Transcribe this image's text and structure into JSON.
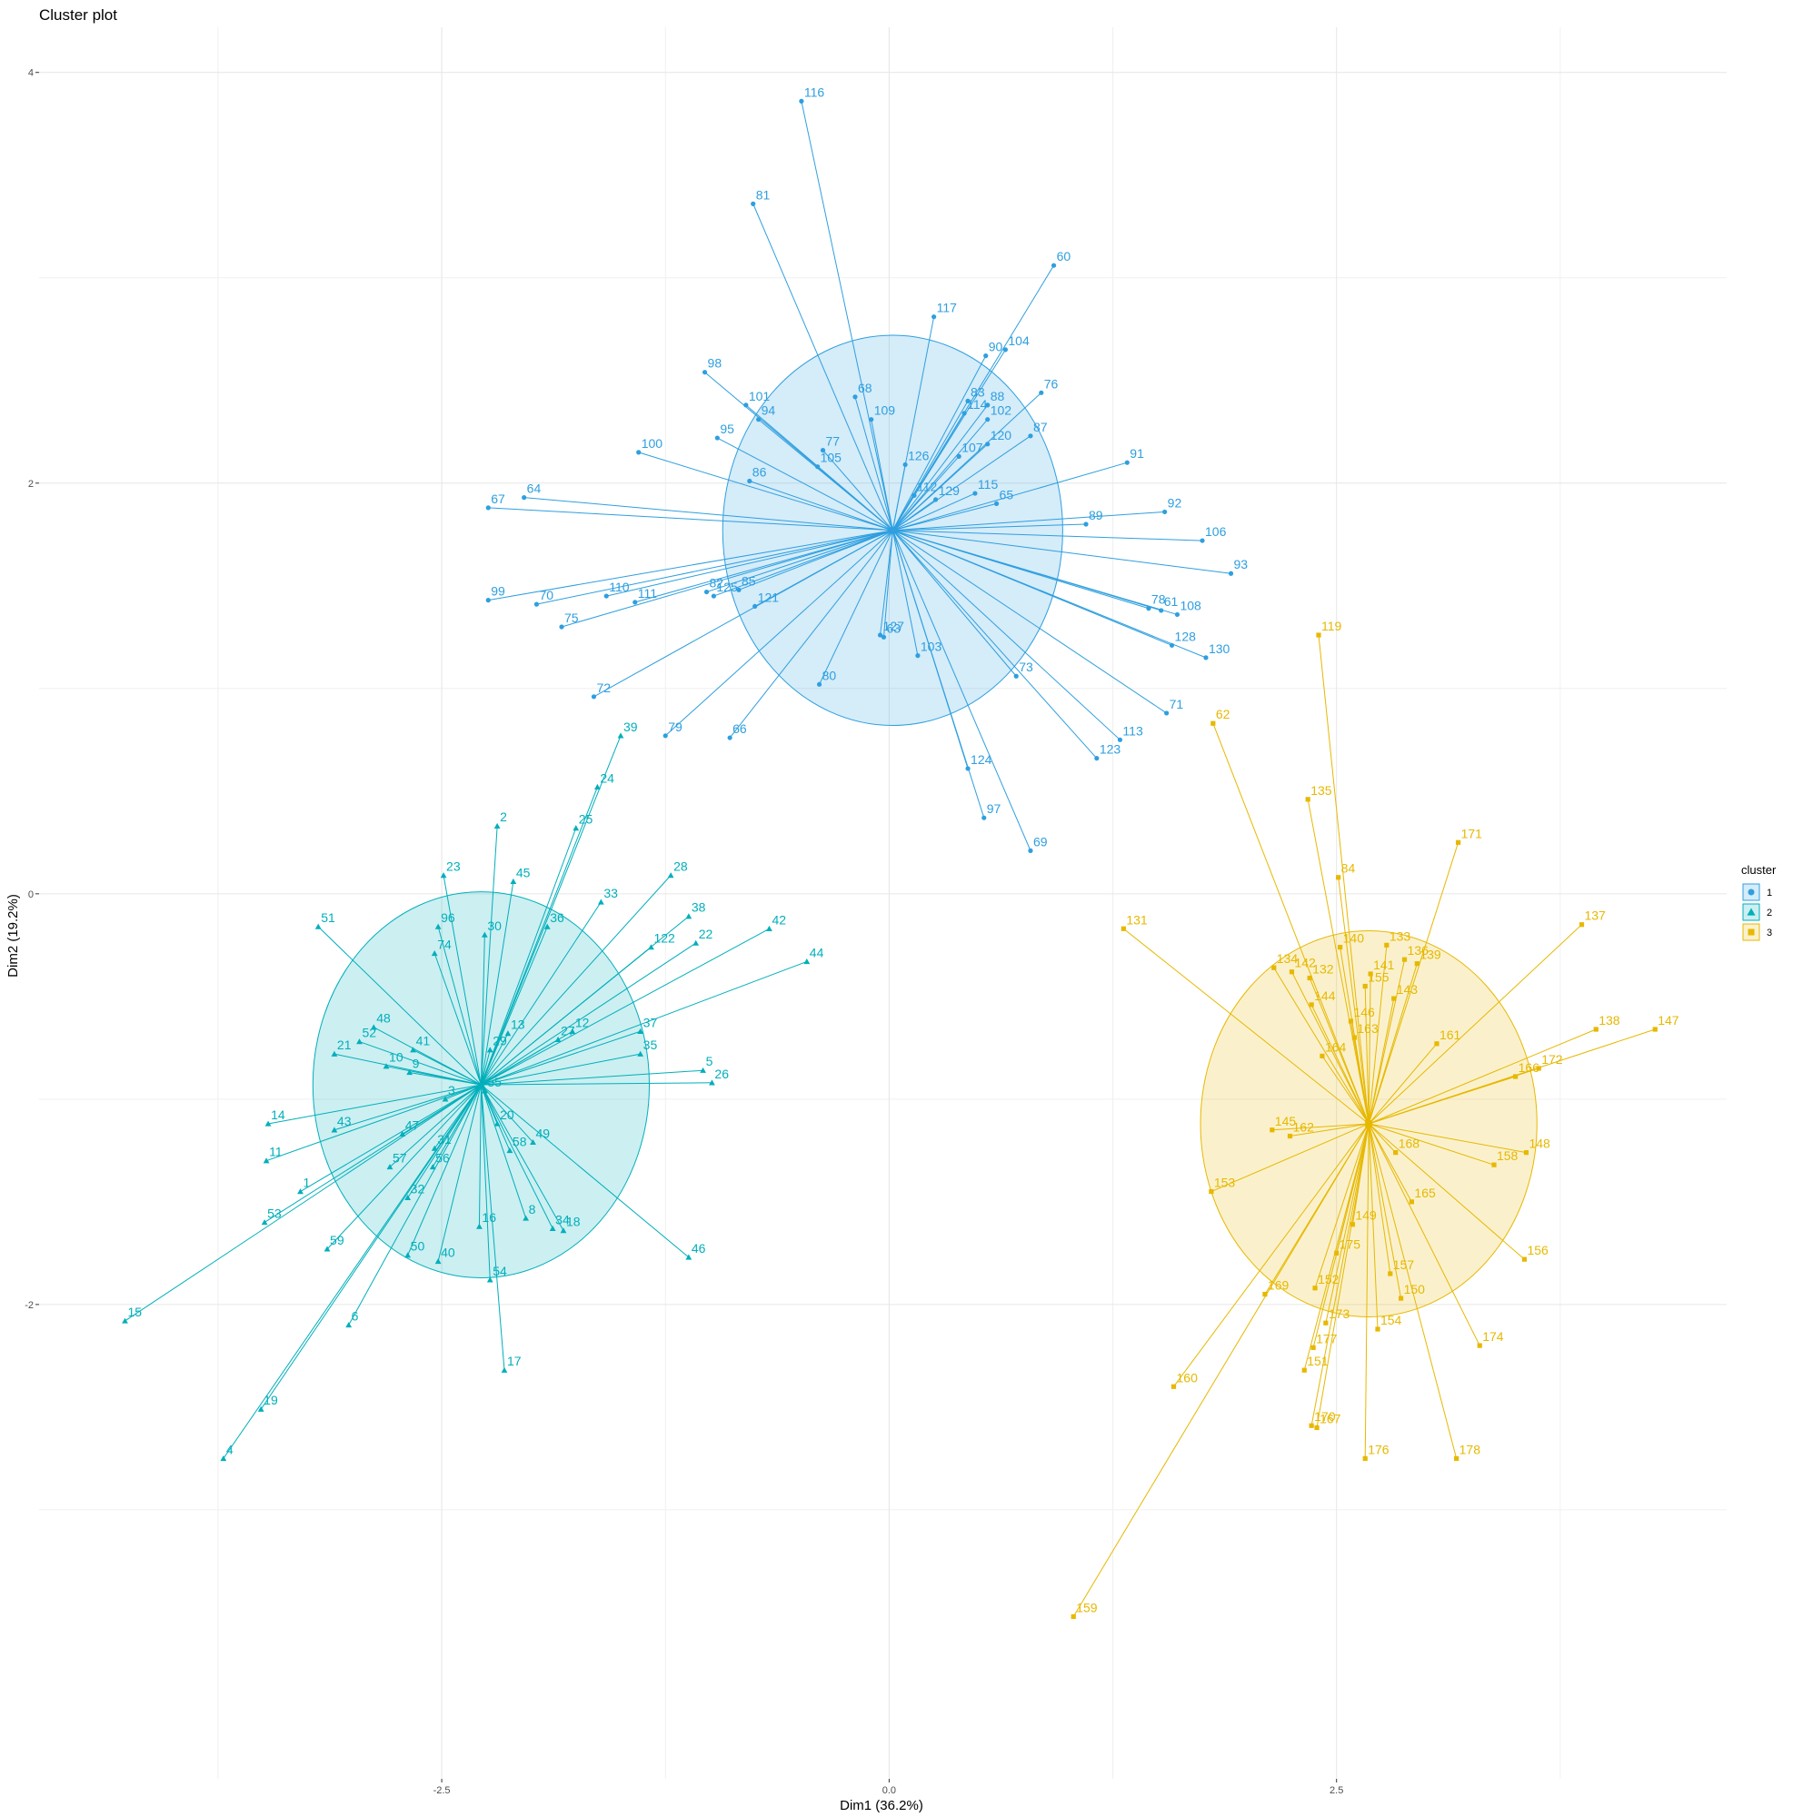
{
  "chart_data": {
    "type": "scatter",
    "title": "Cluster plot",
    "xlabel": "Dim1 (36.2%)",
    "ylabel": "Dim2 (19.2%)",
    "xlim": [
      -4.75,
      4.68
    ],
    "ylim": [
      -4.31,
      4.22
    ],
    "x_ticks": [
      -2.5,
      0.0,
      2.5
    ],
    "x_tick_labels": [
      "-2.5",
      "0.0",
      "2.5"
    ],
    "y_ticks": [
      -2,
      0,
      2,
      4
    ],
    "y_tick_labels": [
      "-2",
      "0",
      "2",
      "4"
    ],
    "grid": true,
    "legend": {
      "title": "cluster",
      "position": "right"
    },
    "series": [
      {
        "name": "1",
        "marker": "circle",
        "color": "#2E9FDF",
        "center": [
          0.02,
          1.77
        ],
        "ellipse_radius": [
          0.95,
          0.95
        ],
        "points": [
          {
            "label": "116",
            "x": -0.49,
            "y": 3.86
          },
          {
            "label": "81",
            "x": -0.76,
            "y": 3.36
          },
          {
            "label": "60",
            "x": 0.92,
            "y": 3.06
          },
          {
            "label": "117",
            "x": 0.25,
            "y": 2.81
          },
          {
            "label": "104",
            "x": 0.65,
            "y": 2.65
          },
          {
            "label": "90",
            "x": 0.54,
            "y": 2.62
          },
          {
            "label": "98",
            "x": -1.03,
            "y": 2.54
          },
          {
            "label": "76",
            "x": 0.85,
            "y": 2.44
          },
          {
            "label": "68",
            "x": -0.19,
            "y": 2.42
          },
          {
            "label": "83",
            "x": 0.44,
            "y": 2.4
          },
          {
            "label": "88",
            "x": 0.55,
            "y": 2.38
          },
          {
            "label": "101",
            "x": -0.8,
            "y": 2.38
          },
          {
            "label": "114",
            "x": 0.42,
            "y": 2.34
          },
          {
            "label": "102",
            "x": 0.55,
            "y": 2.31
          },
          {
            "label": "94",
            "x": -0.73,
            "y": 2.31
          },
          {
            "label": "109",
            "x": -0.1,
            "y": 2.31
          },
          {
            "label": "87",
            "x": 0.79,
            "y": 2.23
          },
          {
            "label": "95",
            "x": -0.96,
            "y": 2.22
          },
          {
            "label": "77",
            "x": -0.37,
            "y": 2.16
          },
          {
            "label": "120",
            "x": 0.55,
            "y": 2.19
          },
          {
            "label": "100",
            "x": -1.4,
            "y": 2.15
          },
          {
            "label": "107",
            "x": 0.39,
            "y": 2.13
          },
          {
            "label": "91",
            "x": 1.33,
            "y": 2.1
          },
          {
            "label": "105",
            "x": -0.4,
            "y": 2.08
          },
          {
            "label": "86",
            "x": -0.78,
            "y": 2.01
          },
          {
            "label": "126",
            "x": 0.09,
            "y": 2.09
          },
          {
            "label": "112",
            "x": 0.14,
            "y": 1.94
          },
          {
            "label": "115",
            "x": 0.48,
            "y": 1.95
          },
          {
            "label": "129",
            "x": 0.26,
            "y": 1.92
          },
          {
            "label": "65",
            "x": 0.6,
            "y": 1.9
          },
          {
            "label": "67",
            "x": -2.24,
            "y": 1.88
          },
          {
            "label": "64",
            "x": -2.04,
            "y": 1.93
          },
          {
            "label": "92",
            "x": 1.54,
            "y": 1.86
          },
          {
            "label": "89",
            "x": 1.1,
            "y": 1.8
          },
          {
            "label": "106",
            "x": 1.75,
            "y": 1.72
          },
          {
            "label": "93",
            "x": 1.91,
            "y": 1.56
          },
          {
            "label": "110",
            "x": -1.58,
            "y": 1.45
          },
          {
            "label": "70",
            "x": -1.97,
            "y": 1.41
          },
          {
            "label": "99",
            "x": -2.24,
            "y": 1.43
          },
          {
            "label": "82",
            "x": -1.02,
            "y": 1.47
          },
          {
            "label": "85",
            "x": -0.84,
            "y": 1.48
          },
          {
            "label": "111",
            "x": -1.42,
            "y": 1.42
          },
          {
            "label": "125",
            "x": -0.98,
            "y": 1.45
          },
          {
            "label": "121",
            "x": -0.75,
            "y": 1.4
          },
          {
            "label": "61",
            "x": 1.52,
            "y": 1.38
          },
          {
            "label": "108",
            "x": 1.61,
            "y": 1.36
          },
          {
            "label": "78",
            "x": 1.45,
            "y": 1.39
          },
          {
            "label": "75",
            "x": -1.83,
            "y": 1.3
          },
          {
            "label": "127",
            "x": -0.05,
            "y": 1.26
          },
          {
            "label": "63",
            "x": -0.03,
            "y": 1.25
          },
          {
            "label": "128",
            "x": 1.58,
            "y": 1.21
          },
          {
            "label": "130",
            "x": 1.77,
            "y": 1.15
          },
          {
            "label": "103",
            "x": 0.16,
            "y": 1.16
          },
          {
            "label": "73",
            "x": 0.71,
            "y": 1.06
          },
          {
            "label": "80",
            "x": -0.39,
            "y": 1.02
          },
          {
            "label": "72",
            "x": -1.65,
            "y": 0.96
          },
          {
            "label": "71",
            "x": 1.55,
            "y": 0.88
          },
          {
            "label": "79",
            "x": -1.25,
            "y": 0.77
          },
          {
            "label": "66",
            "x": -0.89,
            "y": 0.76
          },
          {
            "label": "113",
            "x": 1.29,
            "y": 0.75
          },
          {
            "label": "123",
            "x": 1.16,
            "y": 0.66
          },
          {
            "label": "124",
            "x": 0.44,
            "y": 0.61
          },
          {
            "label": "97",
            "x": 0.53,
            "y": 0.37
          },
          {
            "label": "69",
            "x": 0.79,
            "y": 0.21
          }
        ]
      },
      {
        "name": "2",
        "marker": "triangle",
        "color": "#00AFBB",
        "center": [
          -2.28,
          -0.93
        ],
        "ellipse_radius": [
          0.94,
          0.94
        ],
        "points": [
          {
            "label": "39",
            "x": -1.5,
            "y": 0.77
          },
          {
            "label": "24",
            "x": -1.63,
            "y": 0.52
          },
          {
            "label": "2",
            "x": -2.19,
            "y": 0.33
          },
          {
            "label": "25",
            "x": -1.75,
            "y": 0.32
          },
          {
            "label": "45",
            "x": -2.1,
            "y": 0.06
          },
          {
            "label": "23",
            "x": -2.49,
            "y": 0.09
          },
          {
            "label": "28",
            "x": -1.22,
            "y": 0.09
          },
          {
            "label": "33",
            "x": -1.61,
            "y": -0.04
          },
          {
            "label": "51",
            "x": -3.19,
            "y": -0.16
          },
          {
            "label": "30",
            "x": -2.26,
            "y": -0.2
          },
          {
            "label": "36",
            "x": -1.91,
            "y": -0.16
          },
          {
            "label": "38",
            "x": -1.12,
            "y": -0.11
          },
          {
            "label": "96",
            "x": -2.52,
            "y": -0.16
          },
          {
            "label": "42",
            "x": -0.67,
            "y": -0.17
          },
          {
            "label": "122",
            "x": -1.33,
            "y": -0.26
          },
          {
            "label": "22",
            "x": -1.08,
            "y": -0.24
          },
          {
            "label": "74",
            "x": -2.54,
            "y": -0.29
          },
          {
            "label": "44",
            "x": -0.46,
            "y": -0.33
          },
          {
            "label": "12",
            "x": -1.77,
            "y": -0.67
          },
          {
            "label": "48",
            "x": -2.88,
            "y": -0.65
          },
          {
            "label": "13",
            "x": -2.13,
            "y": -0.68
          },
          {
            "label": "37",
            "x": -1.39,
            "y": -0.67
          },
          {
            "label": "52",
            "x": -2.96,
            "y": -0.72
          },
          {
            "label": "27",
            "x": -1.85,
            "y": -0.71
          },
          {
            "label": "41",
            "x": -2.66,
            "y": -0.76
          },
          {
            "label": "29",
            "x": -2.23,
            "y": -0.76
          },
          {
            "label": "35",
            "x": -1.39,
            "y": -0.78
          },
          {
            "label": "21",
            "x": -3.1,
            "y": -0.78
          },
          {
            "label": "10",
            "x": -2.81,
            "y": -0.84
          },
          {
            "label": "9",
            "x": -2.68,
            "y": -0.87
          },
          {
            "label": "5",
            "x": -1.04,
            "y": -0.86
          },
          {
            "label": "26",
            "x": -0.99,
            "y": -0.92
          },
          {
            "label": "55",
            "x": -2.26,
            "y": -0.96
          },
          {
            "label": "3",
            "x": -2.48,
            "y": -1.0
          },
          {
            "label": "14",
            "x": -3.47,
            "y": -1.12
          },
          {
            "label": "43",
            "x": -3.1,
            "y": -1.15
          },
          {
            "label": "20",
            "x": -2.19,
            "y": -1.12
          },
          {
            "label": "47",
            "x": -2.72,
            "y": -1.17
          },
          {
            "label": "49",
            "x": -1.99,
            "y": -1.21
          },
          {
            "label": "11",
            "x": -3.48,
            "y": -1.3
          },
          {
            "label": "58",
            "x": -2.12,
            "y": -1.25
          },
          {
            "label": "31",
            "x": -2.54,
            "y": -1.24
          },
          {
            "label": "57",
            "x": -2.79,
            "y": -1.33
          },
          {
            "label": "56",
            "x": -2.55,
            "y": -1.33
          },
          {
            "label": "1",
            "x": -3.29,
            "y": -1.45
          },
          {
            "label": "32",
            "x": -2.69,
            "y": -1.48
          },
          {
            "label": "8",
            "x": -2.03,
            "y": -1.58
          },
          {
            "label": "16",
            "x": -2.29,
            "y": -1.62
          },
          {
            "label": "34",
            "x": -1.88,
            "y": -1.63
          },
          {
            "label": "18",
            "x": -1.82,
            "y": -1.64
          },
          {
            "label": "53",
            "x": -3.49,
            "y": -1.6
          },
          {
            "label": "59",
            "x": -3.14,
            "y": -1.73
          },
          {
            "label": "46",
            "x": -1.12,
            "y": -1.77
          },
          {
            "label": "50",
            "x": -2.69,
            "y": -1.76
          },
          {
            "label": "40",
            "x": -2.52,
            "y": -1.79
          },
          {
            "label": "54",
            "x": -2.23,
            "y": -1.88
          },
          {
            "label": "15",
            "x": -4.27,
            "y": -2.08
          },
          {
            "label": "6",
            "x": -3.02,
            "y": -2.1
          },
          {
            "label": "17",
            "x": -2.15,
            "y": -2.32
          },
          {
            "label": "19",
            "x": -3.51,
            "y": -2.51
          },
          {
            "label": "4",
            "x": -3.72,
            "y": -2.75
          }
        ]
      },
      {
        "name": "3",
        "marker": "square",
        "color": "#E7B800",
        "center": [
          2.68,
          -1.12
        ],
        "ellipse_radius": [
          0.94,
          0.94
        ],
        "points": [
          {
            "label": "119",
            "x": 2.4,
            "y": 1.26
          },
          {
            "label": "62",
            "x": 1.81,
            "y": 0.83
          },
          {
            "label": "135",
            "x": 2.34,
            "y": 0.46
          },
          {
            "label": "171",
            "x": 3.18,
            "y": 0.25
          },
          {
            "label": "84",
            "x": 2.51,
            "y": 0.08
          },
          {
            "label": "131",
            "x": 1.31,
            "y": -0.17
          },
          {
            "label": "137",
            "x": 3.87,
            "y": -0.15
          },
          {
            "label": "140",
            "x": 2.52,
            "y": -0.26
          },
          {
            "label": "133",
            "x": 2.78,
            "y": -0.25
          },
          {
            "label": "139",
            "x": 2.95,
            "y": -0.34
          },
          {
            "label": "136",
            "x": 2.88,
            "y": -0.32
          },
          {
            "label": "141",
            "x": 2.69,
            "y": -0.39
          },
          {
            "label": "134",
            "x": 2.15,
            "y": -0.36
          },
          {
            "label": "142",
            "x": 2.25,
            "y": -0.38
          },
          {
            "label": "132",
            "x": 2.35,
            "y": -0.41
          },
          {
            "label": "155",
            "x": 2.66,
            "y": -0.45
          },
          {
            "label": "143",
            "x": 2.82,
            "y": -0.51
          },
          {
            "label": "144",
            "x": 2.36,
            "y": -0.54
          },
          {
            "label": "146",
            "x": 2.58,
            "y": -0.62
          },
          {
            "label": "163",
            "x": 2.6,
            "y": -0.7
          },
          {
            "label": "138",
            "x": 3.95,
            "y": -0.66
          },
          {
            "label": "147",
            "x": 4.28,
            "y": -0.66
          },
          {
            "label": "161",
            "x": 3.06,
            "y": -0.73
          },
          {
            "label": "164",
            "x": 2.42,
            "y": -0.79
          },
          {
            "label": "172",
            "x": 3.63,
            "y": -0.85
          },
          {
            "label": "166",
            "x": 3.5,
            "y": -0.89
          },
          {
            "label": "145",
            "x": 2.14,
            "y": -1.15
          },
          {
            "label": "162",
            "x": 2.24,
            "y": -1.18
          },
          {
            "label": "148",
            "x": 3.56,
            "y": -1.26
          },
          {
            "label": "168",
            "x": 2.83,
            "y": -1.26
          },
          {
            "label": "158",
            "x": 3.38,
            "y": -1.32
          },
          {
            "label": "153",
            "x": 1.8,
            "y": -1.45
          },
          {
            "label": "165",
            "x": 2.92,
            "y": -1.5
          },
          {
            "label": "149",
            "x": 2.59,
            "y": -1.61
          },
          {
            "label": "175",
            "x": 2.5,
            "y": -1.75
          },
          {
            "label": "156",
            "x": 3.55,
            "y": -1.78
          },
          {
            "label": "157",
            "x": 2.8,
            "y": -1.85
          },
          {
            "label": "152",
            "x": 2.38,
            "y": -1.92
          },
          {
            "label": "169",
            "x": 2.1,
            "y": -1.95
          },
          {
            "label": "150",
            "x": 2.86,
            "y": -1.97
          },
          {
            "label": "173",
            "x": 2.44,
            "y": -2.09
          },
          {
            "label": "154",
            "x": 2.73,
            "y": -2.12
          },
          {
            "label": "174",
            "x": 3.3,
            "y": -2.2
          },
          {
            "label": "177",
            "x": 2.37,
            "y": -2.21
          },
          {
            "label": "151",
            "x": 2.32,
            "y": -2.32
          },
          {
            "label": "160",
            "x": 1.59,
            "y": -2.4
          },
          {
            "label": "170",
            "x": 2.36,
            "y": -2.59
          },
          {
            "label": "167",
            "x": 2.39,
            "y": -2.6
          },
          {
            "label": "176",
            "x": 2.66,
            "y": -2.75
          },
          {
            "label": "178",
            "x": 3.17,
            "y": -2.75
          },
          {
            "label": "159",
            "x": 1.03,
            "y": -3.52
          }
        ]
      }
    ]
  }
}
